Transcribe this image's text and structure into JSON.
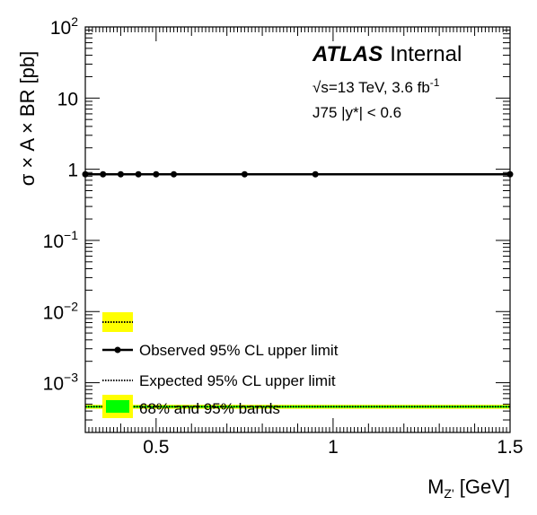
{
  "chart_data": {
    "type": "line",
    "ylabel": "σ × A × BR [pb]",
    "xlabel_main": "M",
    "xlabel_sub": "Z'",
    "xlabel_unit": " [GeV]",
    "xlim": [
      0.3,
      1.5
    ],
    "ylim": [
      0.0002,
      100
    ],
    "y_scale": "log",
    "grid": false,
    "x_ticks": [
      {
        "value": 0.5,
        "label": "0.5"
      },
      {
        "value": 1.0,
        "label": "1"
      },
      {
        "value": 1.5,
        "label": "1.5"
      }
    ],
    "y_ticks": [
      {
        "value": 100,
        "base": "10",
        "exp": "2"
      },
      {
        "value": 10,
        "base": "10",
        "exp": ""
      },
      {
        "value": 1,
        "base": "1",
        "exp": ""
      },
      {
        "value": 0.1,
        "base": "10",
        "exp": "−1"
      },
      {
        "value": 0.01,
        "base": "10",
        "exp": "−2"
      },
      {
        "value": 0.001,
        "base": "10",
        "exp": "−3"
      }
    ],
    "series": [
      {
        "name": "Observed 95% CL upper limit",
        "style": "solid-markers",
        "color": "#000000",
        "x": [
          0.3,
          0.35,
          0.4,
          0.45,
          0.5,
          0.55,
          0.75,
          0.95,
          1.5
        ],
        "values": [
          0.85,
          0.85,
          0.85,
          0.85,
          0.85,
          0.85,
          0.85,
          0.85,
          0.85
        ]
      },
      {
        "name": "Expected 95% CL upper limit",
        "style": "dotted",
        "color": "#000000",
        "x": [
          0.3,
          1.5
        ],
        "values": [
          0.00046,
          0.00046
        ]
      }
    ],
    "bands": {
      "name": "68% and 95% bands",
      "color_68": "#00ff00",
      "color_95": "#ffff00",
      "x": [
        0.3,
        1.5
      ],
      "band95": [
        0.00043,
        0.00049
      ],
      "band68": [
        0.000445,
        0.000475
      ]
    },
    "annotations": {
      "atlas": "ATLAS",
      "internal": "Internal",
      "energy_prefix": "√s=13 TeV, 3.6 fb",
      "energy_exp": "-1",
      "selection": "J75 |y*| < 0.6"
    }
  }
}
